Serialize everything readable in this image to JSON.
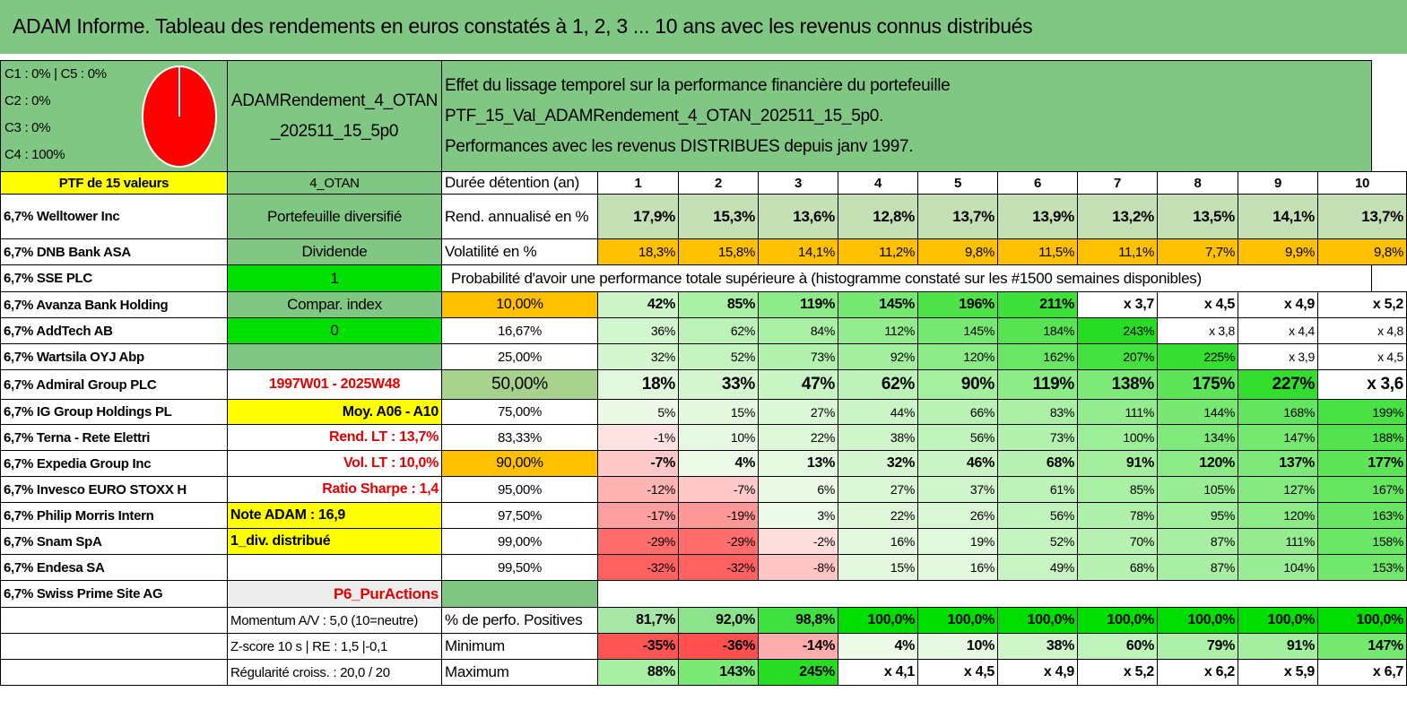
{
  "title": "ADAM Informe. Tableau des rendements en euros constatés à 1, 2, 3 ... 10 ans avec les revenus connus distribués",
  "legend": {
    "lines": [
      "C1 : 0% | C5 : 0%",
      "C2 : 0%",
      "C3 : 0%",
      "C4 : 100%"
    ],
    "pie_color": "#ff0000"
  },
  "portfolio_code_line1": "ADAMRendement_4_OTAN",
  "portfolio_code_line2": "_202511_15_5p0",
  "description_line1": "Effet du lissage temporel sur la performance financière du portefeuille PTF_15_Val_ADAMRendement_4_OTAN_202511_15_5p0.",
  "description_line2": "Performances avec les revenus DISTRIBUES depuis janv 1997.",
  "ptf_label": "PTF de 15 valeurs",
  "otan_label": "4_OTAN",
  "duration_label": "Durée détention (an)",
  "years": [
    "1",
    "2",
    "3",
    "4",
    "5",
    "6",
    "7",
    "8",
    "9",
    "10"
  ],
  "holdings": [
    "6,7% Welltower Inc",
    "6,7% DNB Bank ASA",
    "6,7% SSE PLC",
    "6,7% Avanza Bank Holding",
    "6,7% AddTech AB",
    "6,7% Wartsila OYJ Abp",
    "6,7% Admiral Group PLC",
    "6,7% IG Group Holdings PL",
    "6,7% Terna - Rete Elettri",
    "6,7% Expedia Group Inc",
    "6,7% Invesco EURO STOXX H",
    "6,7% Philip Morris Intern",
    "6,7% Snam SpA",
    "6,7% Endesa SA",
    "6,7% Swiss Prime Site AG"
  ],
  "info": {
    "portefeuille": "Portefeuille diversifié",
    "dividende": "Dividende",
    "one": "1",
    "compar": "Compar. index",
    "zero": "0",
    "period": "1997W01 - 2025W48",
    "moy": "Moy. A06 - A10",
    "rend_lt": "Rend. LT : 13,7%",
    "vol_lt": "Vol. LT : 10,0%",
    "sharpe": "Ratio Sharpe : 1,4",
    "note": "Note ADAM : 16,9",
    "div": "1_div. distribué",
    "p6": "P6_PurActions"
  },
  "rend_label": "Rend. annualisé en %",
  "rend_values": [
    "17,9%",
    "15,3%",
    "13,6%",
    "12,8%",
    "13,7%",
    "13,9%",
    "13,2%",
    "13,5%",
    "14,1%",
    "13,7%"
  ],
  "vol_label": "Volatilité en %",
  "vol_values": [
    "18,3%",
    "15,8%",
    "14,1%",
    "11,2%",
    "9,8%",
    "11,5%",
    "11,1%",
    "7,7%",
    "9,9%",
    "9,8%"
  ],
  "prob_header": "Probabilité d'avoir une performance totale supérieure à (histogramme constaté sur les #1500 semaines disponibles)",
  "prob_rows": [
    {
      "p": "10,00%",
      "v": [
        "42%",
        "85%",
        "119%",
        "145%",
        "196%",
        "211%",
        "x 3,7",
        "x 4,5",
        "x 4,9",
        "x 5,2"
      ]
    },
    {
      "p": "16,67%",
      "v": [
        "36%",
        "62%",
        "84%",
        "112%",
        "145%",
        "184%",
        "243%",
        "x 3,8",
        "x 4,4",
        "x 4,8"
      ]
    },
    {
      "p": "25,00%",
      "v": [
        "32%",
        "52%",
        "73%",
        "92%",
        "120%",
        "162%",
        "207%",
        "225%",
        "x 3,9",
        "x 4,5"
      ]
    },
    {
      "p": "50,00%",
      "v": [
        "18%",
        "33%",
        "47%",
        "62%",
        "90%",
        "119%",
        "138%",
        "175%",
        "227%",
        "x 3,6"
      ]
    },
    {
      "p": "75,00%",
      "v": [
        "5%",
        "15%",
        "27%",
        "44%",
        "66%",
        "83%",
        "111%",
        "144%",
        "168%",
        "199%"
      ]
    },
    {
      "p": "83,33%",
      "v": [
        "-1%",
        "10%",
        "22%",
        "38%",
        "56%",
        "73%",
        "100%",
        "134%",
        "147%",
        "188%"
      ]
    },
    {
      "p": "90,00%",
      "v": [
        "-7%",
        "4%",
        "13%",
        "32%",
        "46%",
        "68%",
        "91%",
        "120%",
        "137%",
        "177%"
      ]
    },
    {
      "p": "95,00%",
      "v": [
        "-12%",
        "-7%",
        "6%",
        "27%",
        "37%",
        "61%",
        "85%",
        "105%",
        "127%",
        "167%"
      ]
    },
    {
      "p": "97,50%",
      "v": [
        "-17%",
        "-19%",
        "3%",
        "22%",
        "26%",
        "56%",
        "78%",
        "95%",
        "120%",
        "163%"
      ]
    },
    {
      "p": "99,00%",
      "v": [
        "-29%",
        "-29%",
        "-2%",
        "16%",
        "19%",
        "52%",
        "70%",
        "87%",
        "111%",
        "158%"
      ]
    },
    {
      "p": "99,50%",
      "v": [
        "-32%",
        "-32%",
        "-8%",
        "15%",
        "16%",
        "49%",
        "68%",
        "87%",
        "104%",
        "153%"
      ]
    }
  ],
  "momentum": "Momentum A/V : 5,0 (10=neutre)",
  "zscore": "Z-score 10 s | RE : 1,5 |-0,1",
  "regularite": "Régularité croiss. : 20,0 / 20",
  "pos_label": "% de perfo. Positives",
  "pos_values": [
    "81,7%",
    "92,0%",
    "98,8%",
    "100,0%",
    "100,0%",
    "100,0%",
    "100,0%",
    "100,0%",
    "100,0%",
    "100,0%"
  ],
  "min_label": "Minimum",
  "min_values": [
    "-35%",
    "-36%",
    "-14%",
    "4%",
    "10%",
    "38%",
    "60%",
    "79%",
    "91%",
    "147%"
  ],
  "max_label": "Maximum",
  "max_values": [
    "88%",
    "143%",
    "245%",
    "x 4,1",
    "x 4,5",
    "x 4,9",
    "x 5,2",
    "x 6,2",
    "x 5,9",
    "x 6,7"
  ]
}
